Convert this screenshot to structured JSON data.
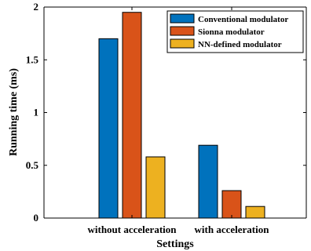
{
  "chart_data": {
    "type": "bar",
    "categories": [
      "without acceleration",
      "with acceleration"
    ],
    "series": [
      {
        "name": "Conventional modulator",
        "values": [
          1.7,
          0.69
        ],
        "color": "#0072BD"
      },
      {
        "name": "Sionna modulator",
        "values": [
          1.95,
          0.26
        ],
        "color": "#D95319"
      },
      {
        "name": "NN-defined modulator",
        "values": [
          0.58,
          0.11
        ],
        "color": "#EDB120"
      }
    ],
    "xlabel": "Settings",
    "ylabel": "Running time (ms)",
    "ylim": [
      0,
      2
    ],
    "yticks": [
      0,
      0.5,
      1,
      1.5,
      2
    ],
    "ytick_labels": [
      "0",
      "0.5",
      "1",
      "1.5",
      "2"
    ],
    "grid": false,
    "legend_position": "top-right"
  }
}
